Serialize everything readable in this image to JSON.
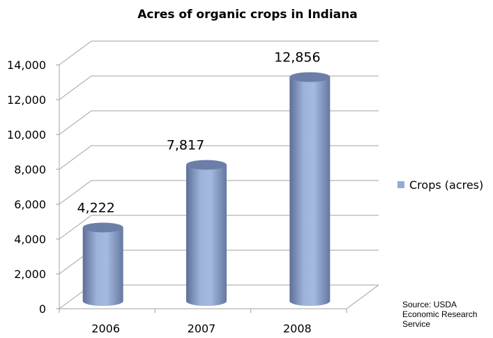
{
  "chart_data": {
    "type": "bar",
    "style": "3d-cylinder",
    "title": "Acres of organic crops in Indiana",
    "categories": [
      "2006",
      "2007",
      "2008"
    ],
    "series": [
      {
        "name": "Crops (acres)",
        "values": [
          4222,
          7817,
          12856
        ],
        "labels": [
          "4,222",
          "7,817",
          "12,856"
        ],
        "color": "#95abd6"
      }
    ],
    "ylim": [
      0,
      14000
    ],
    "yticks": [
      "0",
      "2,000",
      "4,000",
      "6,000",
      "8,000",
      "10,000",
      "12,000",
      "14,000"
    ],
    "grid": true,
    "legend": "right",
    "annotation": [
      "Source: USDA",
      "Economic Research",
      "Service"
    ]
  }
}
